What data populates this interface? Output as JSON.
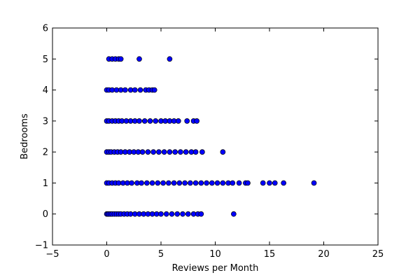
{
  "chart_data": {
    "type": "scatter",
    "title": "",
    "xlabel": "Reviews per Month",
    "ylabel": "Bedrooms",
    "xlim": [
      -5,
      25
    ],
    "ylim": [
      -1,
      6
    ],
    "xticks": [
      -5,
      0,
      5,
      10,
      15,
      20,
      25
    ],
    "yticks": [
      -1,
      0,
      1,
      2,
      3,
      4,
      5,
      6
    ],
    "grid": false,
    "legend": "none",
    "marker_color": "#0000ff",
    "marker_edge": "#000000",
    "points": [
      {
        "x": 0.0,
        "y": 0
      },
      {
        "x": 0.1,
        "y": 0
      },
      {
        "x": 0.2,
        "y": 0
      },
      {
        "x": 0.35,
        "y": 0
      },
      {
        "x": 0.5,
        "y": 0
      },
      {
        "x": 0.7,
        "y": 0
      },
      {
        "x": 0.9,
        "y": 0
      },
      {
        "x": 1.1,
        "y": 0
      },
      {
        "x": 1.3,
        "y": 0
      },
      {
        "x": 1.6,
        "y": 0
      },
      {
        "x": 1.9,
        "y": 0
      },
      {
        "x": 2.2,
        "y": 0
      },
      {
        "x": 2.6,
        "y": 0
      },
      {
        "x": 3.0,
        "y": 0
      },
      {
        "x": 3.4,
        "y": 0
      },
      {
        "x": 3.8,
        "y": 0
      },
      {
        "x": 4.2,
        "y": 0
      },
      {
        "x": 4.6,
        "y": 0
      },
      {
        "x": 5.0,
        "y": 0
      },
      {
        "x": 5.5,
        "y": 0
      },
      {
        "x": 6.0,
        "y": 0
      },
      {
        "x": 6.5,
        "y": 0
      },
      {
        "x": 7.0,
        "y": 0
      },
      {
        "x": 7.5,
        "y": 0
      },
      {
        "x": 8.0,
        "y": 0
      },
      {
        "x": 8.4,
        "y": 0
      },
      {
        "x": 8.7,
        "y": 0
      },
      {
        "x": 11.7,
        "y": 0
      },
      {
        "x": 0.0,
        "y": 1
      },
      {
        "x": 0.2,
        "y": 1
      },
      {
        "x": 0.5,
        "y": 1
      },
      {
        "x": 0.8,
        "y": 1
      },
      {
        "x": 1.1,
        "y": 1
      },
      {
        "x": 1.5,
        "y": 1
      },
      {
        "x": 1.9,
        "y": 1
      },
      {
        "x": 2.3,
        "y": 1
      },
      {
        "x": 2.8,
        "y": 1
      },
      {
        "x": 3.2,
        "y": 1
      },
      {
        "x": 3.7,
        "y": 1
      },
      {
        "x": 4.2,
        "y": 1
      },
      {
        "x": 4.7,
        "y": 1
      },
      {
        "x": 5.2,
        "y": 1
      },
      {
        "x": 5.7,
        "y": 1
      },
      {
        "x": 6.2,
        "y": 1
      },
      {
        "x": 6.7,
        "y": 1
      },
      {
        "x": 7.2,
        "y": 1
      },
      {
        "x": 7.7,
        "y": 1
      },
      {
        "x": 8.2,
        "y": 1
      },
      {
        "x": 8.7,
        "y": 1
      },
      {
        "x": 9.2,
        "y": 1
      },
      {
        "x": 9.7,
        "y": 1
      },
      {
        "x": 10.2,
        "y": 1
      },
      {
        "x": 10.7,
        "y": 1
      },
      {
        "x": 11.2,
        "y": 1
      },
      {
        "x": 11.6,
        "y": 1
      },
      {
        "x": 12.2,
        "y": 1
      },
      {
        "x": 12.8,
        "y": 1
      },
      {
        "x": 13.0,
        "y": 1
      },
      {
        "x": 14.4,
        "y": 1
      },
      {
        "x": 15.0,
        "y": 1
      },
      {
        "x": 15.5,
        "y": 1
      },
      {
        "x": 16.3,
        "y": 1
      },
      {
        "x": 19.1,
        "y": 1
      },
      {
        "x": 0.0,
        "y": 2
      },
      {
        "x": 0.2,
        "y": 2
      },
      {
        "x": 0.4,
        "y": 2
      },
      {
        "x": 0.7,
        "y": 2
      },
      {
        "x": 1.0,
        "y": 2
      },
      {
        "x": 1.3,
        "y": 2
      },
      {
        "x": 1.7,
        "y": 2
      },
      {
        "x": 2.1,
        "y": 2
      },
      {
        "x": 2.5,
        "y": 2
      },
      {
        "x": 2.9,
        "y": 2
      },
      {
        "x": 3.3,
        "y": 2
      },
      {
        "x": 3.8,
        "y": 2
      },
      {
        "x": 4.3,
        "y": 2
      },
      {
        "x": 4.8,
        "y": 2
      },
      {
        "x": 5.3,
        "y": 2
      },
      {
        "x": 5.8,
        "y": 2
      },
      {
        "x": 6.3,
        "y": 2
      },
      {
        "x": 6.8,
        "y": 2
      },
      {
        "x": 7.3,
        "y": 2
      },
      {
        "x": 7.8,
        "y": 2
      },
      {
        "x": 8.2,
        "y": 2
      },
      {
        "x": 8.8,
        "y": 2
      },
      {
        "x": 10.7,
        "y": 2
      },
      {
        "x": 0.0,
        "y": 3
      },
      {
        "x": 0.2,
        "y": 3
      },
      {
        "x": 0.5,
        "y": 3
      },
      {
        "x": 0.8,
        "y": 3
      },
      {
        "x": 1.1,
        "y": 3
      },
      {
        "x": 1.4,
        "y": 3
      },
      {
        "x": 1.8,
        "y": 3
      },
      {
        "x": 2.2,
        "y": 3
      },
      {
        "x": 2.6,
        "y": 3
      },
      {
        "x": 3.0,
        "y": 3
      },
      {
        "x": 3.5,
        "y": 3
      },
      {
        "x": 4.0,
        "y": 3
      },
      {
        "x": 4.5,
        "y": 3
      },
      {
        "x": 5.0,
        "y": 3
      },
      {
        "x": 5.4,
        "y": 3
      },
      {
        "x": 5.8,
        "y": 3
      },
      {
        "x": 6.2,
        "y": 3
      },
      {
        "x": 6.6,
        "y": 3
      },
      {
        "x": 7.4,
        "y": 3
      },
      {
        "x": 8.0,
        "y": 3
      },
      {
        "x": 8.3,
        "y": 3
      },
      {
        "x": 0.0,
        "y": 4
      },
      {
        "x": 0.2,
        "y": 4
      },
      {
        "x": 0.5,
        "y": 4
      },
      {
        "x": 0.9,
        "y": 4
      },
      {
        "x": 1.3,
        "y": 4
      },
      {
        "x": 1.7,
        "y": 4
      },
      {
        "x": 2.2,
        "y": 4
      },
      {
        "x": 2.6,
        "y": 4
      },
      {
        "x": 3.1,
        "y": 4
      },
      {
        "x": 3.6,
        "y": 4
      },
      {
        "x": 3.9,
        "y": 4
      },
      {
        "x": 4.2,
        "y": 4
      },
      {
        "x": 4.4,
        "y": 4
      },
      {
        "x": 0.2,
        "y": 5
      },
      {
        "x": 0.5,
        "y": 5
      },
      {
        "x": 0.8,
        "y": 5
      },
      {
        "x": 1.1,
        "y": 5
      },
      {
        "x": 1.3,
        "y": 5
      },
      {
        "x": 3.0,
        "y": 5
      },
      {
        "x": 5.8,
        "y": 5
      }
    ]
  }
}
